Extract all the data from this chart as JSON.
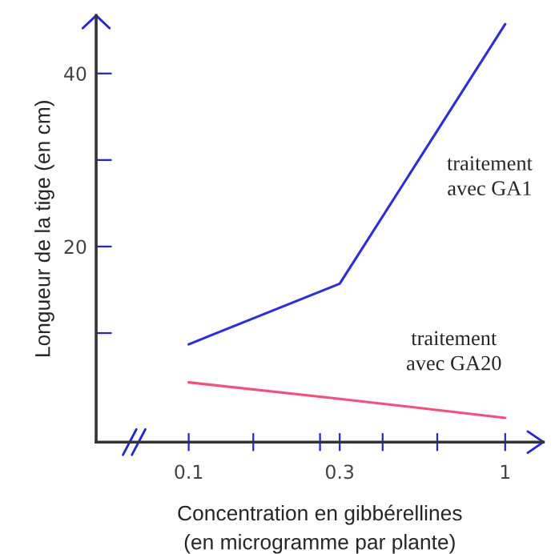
{
  "chart_data": {
    "type": "line",
    "xlabel": "Concentration en gibbérellines\n(en microgramme par plante)",
    "ylabel": "Longueur de la tige (en cm)",
    "x": [
      0.1,
      0.3,
      1
    ],
    "series": [
      {
        "name": "traitement\navec GA1",
        "color": "#2a2af0",
        "values": [
          8.7,
          15.7,
          45.7
        ]
      },
      {
        "name": "traitement\navec GA20",
        "color": "#ff4a78",
        "values": [
          4.3,
          2.4,
          0.2
        ]
      }
    ],
    "log": "x",
    "xlim": [
      0.051,
      1.32
    ],
    "ylim": [
      -2.6,
      46.7
    ],
    "xticks": [
      0.1,
      {
        "value": 0.16,
        "label": null
      },
      {
        "value": 0.26,
        "label": null
      },
      0.3,
      {
        "value": 0.41,
        "label": null
      },
      {
        "value": 0.61,
        "label": null
      },
      1
    ],
    "yticks": [
      {
        "value": 10,
        "label": null
      },
      20,
      {
        "value": 30,
        "label": null
      },
      40
    ],
    "grid": false,
    "legend": false,
    "marker": "none",
    "line_style": "solid"
  }
}
